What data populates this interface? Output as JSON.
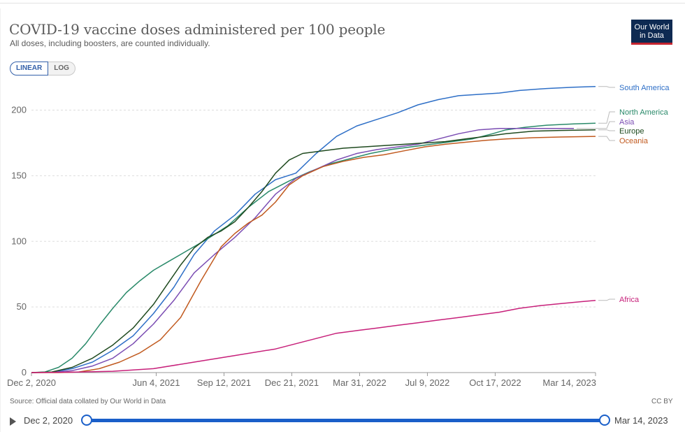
{
  "header": {
    "title": "COVID-19 vaccine doses administered per 100 people",
    "subtitle": "All doses, including boosters, are counted individually.",
    "logo_line1": "Our World",
    "logo_line2": "in Data"
  },
  "scale_toggle": {
    "linear_label": "LINEAR",
    "log_label": "LOG"
  },
  "footer": {
    "source": "Source: Official data collated by Our World in Data",
    "license": "CC BY"
  },
  "timeline": {
    "start_label": "Dec 2, 2020",
    "end_label": "Mar 14, 2023"
  },
  "chart_data": {
    "type": "line",
    "title": "COVID-19 vaccine doses administered per 100 people",
    "xlabel": "",
    "ylabel": "",
    "x_unit": "days since Dec 2, 2020",
    "xlim": [
      0,
      832
    ],
    "ylim": [
      0,
      220
    ],
    "yticks": [
      0,
      50,
      100,
      150,
      200
    ],
    "xticks": [
      {
        "x": 0,
        "label": "Dec 2, 2020"
      },
      {
        "x": 184,
        "label": "Jun 4, 2021"
      },
      {
        "x": 284,
        "label": "Sep 12, 2021"
      },
      {
        "x": 384,
        "label": "Dec 21, 2021"
      },
      {
        "x": 484,
        "label": "Mar 31, 2022"
      },
      {
        "x": 584,
        "label": "Jul 9, 2022"
      },
      {
        "x": 684,
        "label": "Oct 17, 2022"
      },
      {
        "x": 832,
        "label": "Mar 14, 2023"
      }
    ],
    "grid": true,
    "series": [
      {
        "name": "South America",
        "color": "#2e6fc7",
        "points": [
          [
            0,
            0
          ],
          [
            30,
            0.3
          ],
          [
            60,
            3
          ],
          [
            90,
            8
          ],
          [
            120,
            17
          ],
          [
            150,
            28
          ],
          [
            180,
            45
          ],
          [
            210,
            65
          ],
          [
            240,
            90
          ],
          [
            270,
            108
          ],
          [
            300,
            120
          ],
          [
            330,
            136
          ],
          [
            360,
            147
          ],
          [
            390,
            152
          ],
          [
            420,
            167
          ],
          [
            450,
            180
          ],
          [
            480,
            188
          ],
          [
            510,
            193
          ],
          [
            540,
            198
          ],
          [
            570,
            204
          ],
          [
            600,
            208
          ],
          [
            630,
            211
          ],
          [
            660,
            212
          ],
          [
            690,
            213
          ],
          [
            720,
            215
          ],
          [
            760,
            216.5
          ],
          [
            800,
            217.5
          ],
          [
            832,
            218
          ]
        ]
      },
      {
        "name": "North America",
        "color": "#2a8a6a",
        "points": [
          [
            0,
            0
          ],
          [
            20,
            0.5
          ],
          [
            40,
            4
          ],
          [
            60,
            11
          ],
          [
            80,
            22
          ],
          [
            100,
            36
          ],
          [
            120,
            49
          ],
          [
            140,
            61
          ],
          [
            160,
            70
          ],
          [
            180,
            78
          ],
          [
            200,
            84
          ],
          [
            230,
            93
          ],
          [
            260,
            102
          ],
          [
            290,
            112
          ],
          [
            320,
            126
          ],
          [
            350,
            138
          ],
          [
            380,
            146
          ],
          [
            410,
            153
          ],
          [
            440,
            159
          ],
          [
            470,
            163
          ],
          [
            500,
            167
          ],
          [
            530,
            170
          ],
          [
            560,
            172
          ],
          [
            590,
            174
          ],
          [
            620,
            176
          ],
          [
            650,
            178
          ],
          [
            680,
            182
          ],
          [
            700,
            185
          ],
          [
            730,
            187
          ],
          [
            760,
            188.5
          ],
          [
            800,
            189.5
          ],
          [
            832,
            190
          ]
        ]
      },
      {
        "name": "Asia",
        "color": "#7b4db3",
        "points": [
          [
            0,
            0
          ],
          [
            30,
            0.2
          ],
          [
            60,
            1.5
          ],
          [
            90,
            5
          ],
          [
            120,
            11
          ],
          [
            150,
            22
          ],
          [
            180,
            37
          ],
          [
            210,
            55
          ],
          [
            240,
            76
          ],
          [
            270,
            90
          ],
          [
            300,
            103
          ],
          [
            330,
            118
          ],
          [
            360,
            136
          ],
          [
            390,
            148
          ],
          [
            420,
            155
          ],
          [
            450,
            162
          ],
          [
            480,
            167
          ],
          [
            510,
            170
          ],
          [
            540,
            172
          ],
          [
            570,
            174
          ],
          [
            600,
            178
          ],
          [
            630,
            182
          ],
          [
            660,
            185
          ],
          [
            690,
            186
          ],
          [
            720,
            186
          ],
          [
            760,
            186
          ],
          [
            800,
            186
          ]
        ]
      },
      {
        "name": "Europe",
        "color": "#1f4a1f",
        "points": [
          [
            0,
            0
          ],
          [
            30,
            0.5
          ],
          [
            60,
            4
          ],
          [
            90,
            11
          ],
          [
            120,
            21
          ],
          [
            150,
            34
          ],
          [
            180,
            52
          ],
          [
            200,
            67
          ],
          [
            220,
            82
          ],
          [
            240,
            95
          ],
          [
            260,
            103
          ],
          [
            280,
            108
          ],
          [
            300,
            115
          ],
          [
            320,
            126
          ],
          [
            340,
            138
          ],
          [
            360,
            152
          ],
          [
            380,
            162
          ],
          [
            400,
            167
          ],
          [
            430,
            169
          ],
          [
            460,
            171
          ],
          [
            490,
            172
          ],
          [
            520,
            173
          ],
          [
            550,
            174
          ],
          [
            580,
            175
          ],
          [
            610,
            176
          ],
          [
            640,
            178
          ],
          [
            670,
            180
          ],
          [
            700,
            182
          ],
          [
            740,
            184
          ],
          [
            780,
            184.5
          ],
          [
            832,
            185
          ]
        ]
      },
      {
        "name": "Oceania",
        "color": "#c15a1f",
        "points": [
          [
            0,
            0
          ],
          [
            40,
            0
          ],
          [
            70,
            0.5
          ],
          [
            100,
            3
          ],
          [
            130,
            8
          ],
          [
            160,
            15
          ],
          [
            190,
            25
          ],
          [
            220,
            42
          ],
          [
            250,
            70
          ],
          [
            280,
            96
          ],
          [
            300,
            106
          ],
          [
            320,
            114
          ],
          [
            340,
            120
          ],
          [
            360,
            130
          ],
          [
            380,
            143
          ],
          [
            400,
            150
          ],
          [
            430,
            157
          ],
          [
            460,
            161
          ],
          [
            490,
            164
          ],
          [
            520,
            166
          ],
          [
            550,
            169
          ],
          [
            580,
            172
          ],
          [
            610,
            174
          ],
          [
            640,
            175.5
          ],
          [
            670,
            177
          ],
          [
            700,
            178
          ],
          [
            740,
            179
          ],
          [
            780,
            179.5
          ],
          [
            832,
            180
          ]
        ]
      },
      {
        "name": "Africa",
        "color": "#c7207a",
        "points": [
          [
            0,
            0
          ],
          [
            60,
            0.3
          ],
          [
            120,
            1
          ],
          [
            180,
            3
          ],
          [
            240,
            8
          ],
          [
            300,
            13
          ],
          [
            360,
            18
          ],
          [
            390,
            22
          ],
          [
            420,
            26
          ],
          [
            450,
            30
          ],
          [
            480,
            32
          ],
          [
            510,
            34
          ],
          [
            540,
            36
          ],
          [
            570,
            38
          ],
          [
            600,
            40
          ],
          [
            630,
            42
          ],
          [
            660,
            44
          ],
          [
            690,
            46
          ],
          [
            720,
            49
          ],
          [
            750,
            51
          ],
          [
            780,
            52.5
          ],
          [
            810,
            54
          ],
          [
            832,
            55
          ]
        ]
      }
    ],
    "end_labels": [
      {
        "series": "South America",
        "text": "South America"
      },
      {
        "series": "North America",
        "text": "North America"
      },
      {
        "series": "Asia",
        "text": "Asia"
      },
      {
        "series": "Europe",
        "text": "Europe"
      },
      {
        "series": "Oceania",
        "text": "Oceania"
      },
      {
        "series": "Africa",
        "text": "Africa"
      }
    ]
  }
}
